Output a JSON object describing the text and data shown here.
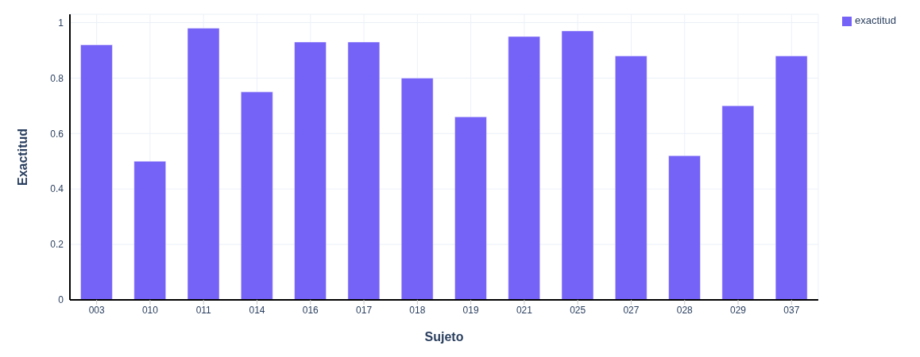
{
  "chart_data": {
    "type": "bar",
    "xlabel": "Sujeto",
    "ylabel": "Exactitud",
    "categories": [
      "003",
      "010",
      "011",
      "014",
      "016",
      "017",
      "018",
      "019",
      "021",
      "025",
      "027",
      "028",
      "029",
      "037"
    ],
    "series": [
      {
        "name": "exactitud",
        "color": "#7562f7",
        "values": [
          0.92,
          0.5,
          0.98,
          0.75,
          0.93,
          0.93,
          0.8,
          0.66,
          0.95,
          0.97,
          0.88,
          0.52,
          0.7,
          0.88
        ]
      }
    ],
    "ylim": [
      0,
      1.03
    ],
    "yticks": [
      0,
      0.2,
      0.4,
      0.6,
      0.8,
      1
    ],
    "grid": true,
    "legend": "top right"
  }
}
